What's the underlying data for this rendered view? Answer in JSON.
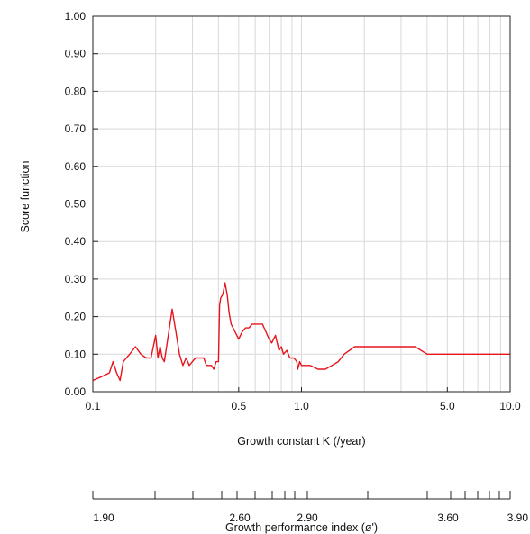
{
  "chart_data": {
    "type": "line",
    "xlabel": "Growth constant K (/year)",
    "ylabel": "Score function",
    "x_scale": "log",
    "xlim": [
      0.1,
      10.0
    ],
    "ylim": [
      0.0,
      1.0
    ],
    "grid": true,
    "x_ticks": [
      "0.1",
      "0.5",
      "1.0",
      "5.0",
      "10.0"
    ],
    "y_ticks": [
      "0.00",
      "0.10",
      "0.20",
      "0.30",
      "0.40",
      "0.50",
      "0.60",
      "0.70",
      "0.80",
      "0.90",
      "1.00"
    ],
    "series": [
      {
        "color": "#e8141c",
        "x": [
          0.1,
          0.11,
          0.12,
          0.125,
          0.13,
          0.135,
          0.14,
          0.15,
          0.16,
          0.17,
          0.18,
          0.19,
          0.2,
          0.205,
          0.21,
          0.215,
          0.22,
          0.23,
          0.24,
          0.25,
          0.26,
          0.27,
          0.28,
          0.29,
          0.3,
          0.31,
          0.32,
          0.33,
          0.34,
          0.35,
          0.36,
          0.37,
          0.38,
          0.39,
          0.4,
          0.405,
          0.41,
          0.42,
          0.43,
          0.44,
          0.45,
          0.46,
          0.47,
          0.48,
          0.5,
          0.52,
          0.54,
          0.56,
          0.58,
          0.6,
          0.62,
          0.65,
          0.7,
          0.72,
          0.75,
          0.78,
          0.8,
          0.82,
          0.85,
          0.88,
          0.9,
          0.92,
          0.95,
          0.96,
          0.98,
          1.0,
          1.05,
          1.1,
          1.2,
          1.3,
          1.4,
          1.5,
          1.6,
          1.8,
          2.0,
          2.5,
          3.0,
          3.5,
          4.0,
          5.0,
          6.0,
          8.0,
          10.0
        ],
        "y": [
          0.03,
          0.04,
          0.05,
          0.08,
          0.05,
          0.03,
          0.08,
          0.1,
          0.12,
          0.1,
          0.09,
          0.09,
          0.15,
          0.09,
          0.12,
          0.09,
          0.08,
          0.15,
          0.22,
          0.16,
          0.1,
          0.07,
          0.09,
          0.07,
          0.08,
          0.09,
          0.09,
          0.09,
          0.09,
          0.07,
          0.07,
          0.07,
          0.06,
          0.08,
          0.08,
          0.23,
          0.25,
          0.26,
          0.29,
          0.26,
          0.21,
          0.18,
          0.17,
          0.16,
          0.14,
          0.16,
          0.17,
          0.17,
          0.18,
          0.18,
          0.18,
          0.18,
          0.14,
          0.13,
          0.15,
          0.11,
          0.12,
          0.1,
          0.11,
          0.09,
          0.09,
          0.09,
          0.08,
          0.06,
          0.08,
          0.07,
          0.07,
          0.07,
          0.06,
          0.06,
          0.07,
          0.08,
          0.1,
          0.12,
          0.12,
          0.12,
          0.12,
          0.12,
          0.1,
          0.1,
          0.1,
          0.1,
          0.1
        ]
      }
    ],
    "secondary_x_axis": {
      "label": "Growth performance index (ø')",
      "tick_labels": [
        "1.90",
        "2.60",
        "2.90",
        "3.60",
        "3.90"
      ]
    }
  }
}
